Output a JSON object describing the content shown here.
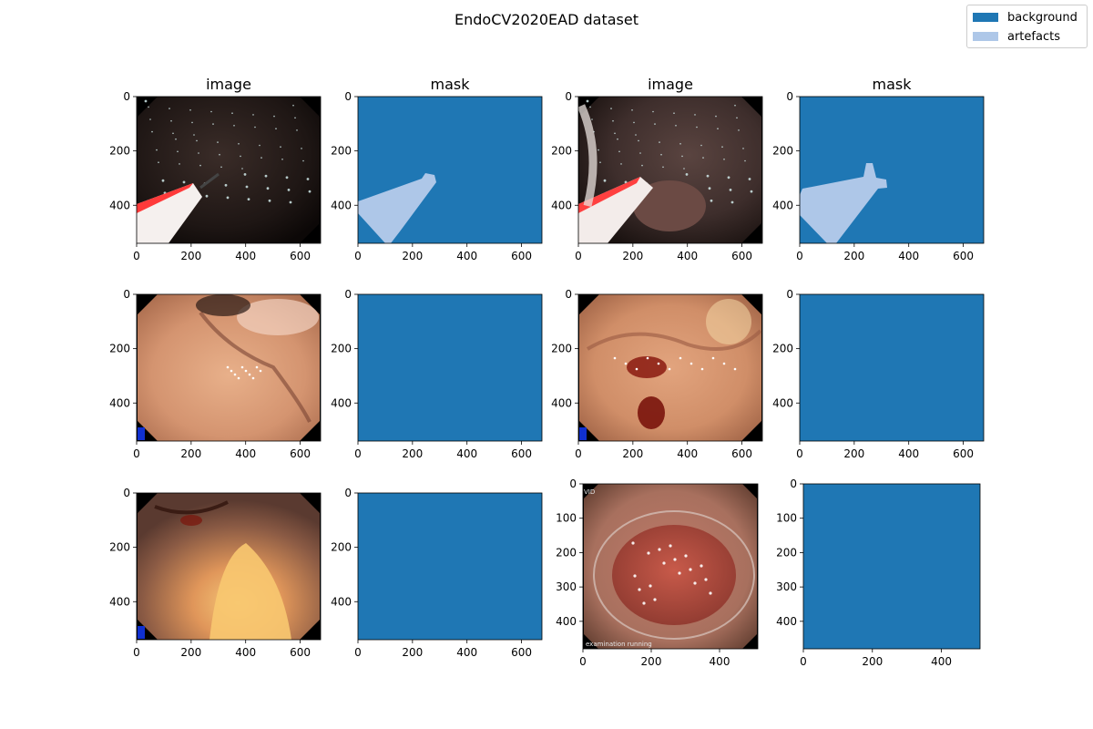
{
  "colors": {
    "background": "#1f77b4",
    "artefacts": "#aec7e8",
    "axis": "#000000"
  },
  "chart_data": {
    "type": "heatmap",
    "title": "EndoCV2020EAD dataset",
    "legend": {
      "placement": "top-right",
      "entries": [
        {
          "label": "background",
          "color": "#1f77b4"
        },
        {
          "label": "artefacts",
          "color": "#aec7e8"
        }
      ]
    },
    "grid": false,
    "panels": [
      {
        "row": 0,
        "col": 0,
        "kind": "image",
        "title": "image",
        "xlim": [
          0,
          675
        ],
        "ylim": [
          540,
          0
        ],
        "xticks": [
          0,
          200,
          400,
          600
        ],
        "yticks": [
          0,
          200,
          400
        ],
        "scene": "dark-tool"
      },
      {
        "row": 0,
        "col": 1,
        "kind": "mask",
        "title": "mask",
        "xlim": [
          0,
          675
        ],
        "ylim": [
          540,
          0
        ],
        "xticks": [
          0,
          200,
          400,
          600
        ],
        "yticks": [
          0,
          200,
          400
        ],
        "artefact_region": "tool-1"
      },
      {
        "row": 0,
        "col": 2,
        "kind": "image",
        "title": "image",
        "xlim": [
          0,
          675
        ],
        "ylim": [
          540,
          0
        ],
        "xticks": [
          0,
          200,
          400,
          600
        ],
        "yticks": [
          0,
          200,
          400
        ],
        "scene": "dark-tool-2"
      },
      {
        "row": 0,
        "col": 3,
        "kind": "mask",
        "title": "mask",
        "xlim": [
          0,
          675
        ],
        "ylim": [
          540,
          0
        ],
        "xticks": [
          0,
          200,
          400,
          600
        ],
        "yticks": [
          0,
          200,
          400
        ],
        "artefact_region": "tool-2"
      },
      {
        "row": 1,
        "col": 0,
        "kind": "image",
        "title": "",
        "xlim": [
          0,
          675
        ],
        "ylim": [
          540,
          0
        ],
        "xticks": [
          0,
          200,
          400,
          600
        ],
        "yticks": [
          0,
          200,
          400
        ],
        "scene": "pink"
      },
      {
        "row": 1,
        "col": 1,
        "kind": "mask",
        "title": "",
        "xlim": [
          0,
          675
        ],
        "ylim": [
          540,
          0
        ],
        "xticks": [
          0,
          200,
          400,
          600
        ],
        "yticks": [
          0,
          200,
          400
        ],
        "artefact_region": "none"
      },
      {
        "row": 1,
        "col": 2,
        "kind": "image",
        "title": "",
        "xlim": [
          0,
          675
        ],
        "ylim": [
          540,
          0
        ],
        "xticks": [
          0,
          200,
          400,
          600
        ],
        "yticks": [
          0,
          200,
          400
        ],
        "scene": "bleeding"
      },
      {
        "row": 1,
        "col": 3,
        "kind": "mask",
        "title": "",
        "xlim": [
          0,
          675
        ],
        "ylim": [
          540,
          0
        ],
        "xticks": [
          0,
          200,
          400,
          600
        ],
        "yticks": [
          0,
          200,
          400
        ],
        "artefact_region": "none"
      },
      {
        "row": 2,
        "col": 0,
        "kind": "image",
        "title": "",
        "xlim": [
          0,
          675
        ],
        "ylim": [
          540,
          0
        ],
        "xticks": [
          0,
          200,
          400,
          600
        ],
        "yticks": [
          0,
          200,
          400
        ],
        "scene": "bright"
      },
      {
        "row": 2,
        "col": 1,
        "kind": "mask",
        "title": "",
        "xlim": [
          0,
          675
        ],
        "ylim": [
          540,
          0
        ],
        "xticks": [
          0,
          200,
          400,
          600
        ],
        "yticks": [
          0,
          200,
          400
        ],
        "artefact_region": "none"
      },
      {
        "row": 2,
        "col": 2,
        "kind": "image",
        "title": "",
        "xlim": [
          0,
          512
        ],
        "ylim": [
          480,
          0
        ],
        "xticks": [
          0,
          200,
          400
        ],
        "yticks": [
          0,
          100,
          200,
          300,
          400
        ],
        "scene": "polyp",
        "overlay_text": [
          "VID",
          "examination   running"
        ]
      },
      {
        "row": 2,
        "col": 3,
        "kind": "mask",
        "title": "",
        "xlim": [
          0,
          512
        ],
        "ylim": [
          480,
          0
        ],
        "xticks": [
          0,
          200,
          400
        ],
        "yticks": [
          0,
          100,
          200,
          300,
          400
        ],
        "artefact_region": "none"
      }
    ]
  }
}
